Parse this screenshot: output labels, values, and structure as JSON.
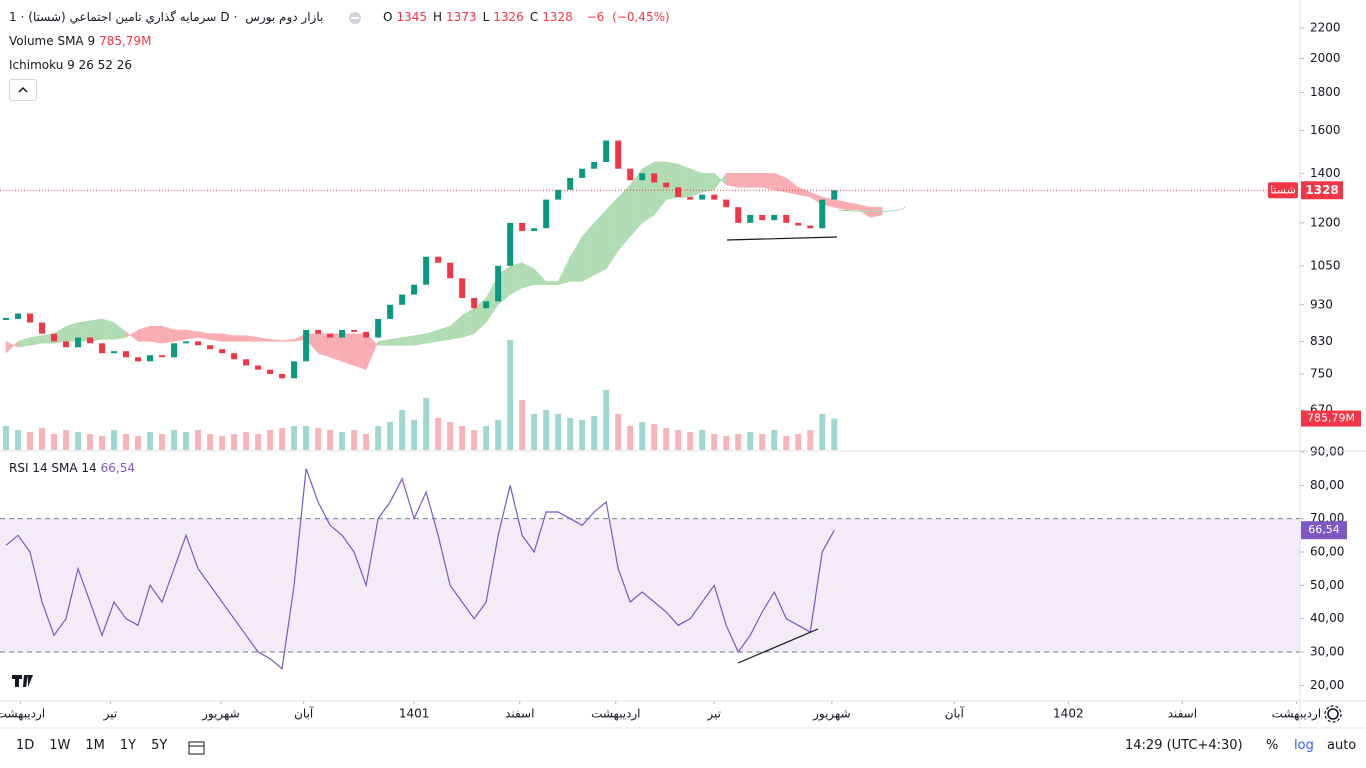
{
  "header": {
    "name": "سرمايه گذاري تامين اجتماعي (شستا)",
    "interval": "1D",
    "exchange": "بازار دوم بورس",
    "ohlc": [
      {
        "prefix": "O",
        "value": 1345
      },
      {
        "prefix": "H",
        "value": 1373
      },
      {
        "prefix": "L",
        "value": 1326
      },
      {
        "prefix": "C",
        "value": 1328
      }
    ],
    "change": {
      "value": -6,
      "label": "−6"
    },
    "change_pct": {
      "value": -0.45,
      "label": "(−0,45%)"
    },
    "volume_legend": "Volume SMA 9",
    "ichimoku_legend": "Ichimoku 9 26 52 26",
    "rsi_legend": "RSI 14 SMA 14"
  },
  "chart_data": {
    "type": "candlestick",
    "close": [
      890,
      905,
      880,
      850,
      830,
      815,
      840,
      825,
      800,
      805,
      790,
      780,
      795,
      790,
      825,
      830,
      820,
      810,
      800,
      785,
      770,
      760,
      750,
      740,
      780,
      860,
      850,
      840,
      860,
      855,
      840,
      890,
      930,
      960,
      990,
      1080,
      1060,
      1010,
      950,
      920,
      940,
      1050,
      1200,
      1170,
      1180,
      1290,
      1330,
      1380,
      1420,
      1450,
      1550,
      1420,
      1370,
      1400,
      1360,
      1340,
      1300,
      1290,
      1310,
      1290,
      1260,
      1200,
      1230,
      1210,
      1230,
      1200,
      1190,
      1180,
      1290,
      1328
    ],
    "volume": [
      600,
      500,
      450,
      550,
      400,
      500,
      450,
      400,
      350,
      500,
      400,
      350,
      450,
      400,
      500,
      450,
      500,
      400,
      350,
      400,
      450,
      400,
      500,
      550,
      600,
      600,
      550,
      500,
      450,
      500,
      400,
      600,
      700,
      1000,
      750,
      1300,
      800,
      700,
      600,
      500,
      600,
      750,
      2750,
      1250,
      900,
      1000,
      900,
      800,
      750,
      850,
      1500,
      900,
      600,
      700,
      650,
      550,
      500,
      450,
      500,
      400,
      350,
      400,
      450,
      400,
      500,
      350,
      400,
      500,
      900,
      785.79
    ],
    "volume_lim": [
      0,
      11250
    ],
    "volume_label": {
      "value": 785.79,
      "label": "785,79M"
    },
    "ichimoku": {
      "span_a": [
        800,
        830,
        840,
        845,
        850,
        870,
        880,
        885,
        890,
        880,
        855,
        830,
        830,
        825,
        830,
        835,
        840,
        835,
        830,
        830,
        830,
        830,
        830,
        830,
        830,
        835,
        800,
        790,
        780,
        770,
        760,
        830,
        835,
        840,
        845,
        850,
        860,
        870,
        900,
        920,
        950,
        1020,
        1050,
        1060,
        1040,
        1000,
        1000,
        1080,
        1150,
        1200,
        1250,
        1300,
        1350,
        1420,
        1450,
        1450,
        1440,
        1420,
        1400,
        1400,
        1350,
        1340,
        1340,
        1340,
        1330,
        1320,
        1310,
        1300,
        1270,
        1260,
        1250,
        1250,
        1220,
        1230
      ],
      "span_b": [
        830,
        815,
        820,
        825,
        825,
        830,
        830,
        830,
        835,
        835,
        840,
        860,
        870,
        870,
        860,
        860,
        855,
        850,
        850,
        845,
        845,
        840,
        835,
        832,
        835,
        850,
        850,
        850,
        850,
        850,
        850,
        820,
        820,
        820,
        820,
        825,
        830,
        835,
        840,
        850,
        880,
        930,
        960,
        980,
        990,
        990,
        990,
        1000,
        1000,
        1020,
        1040,
        1100,
        1150,
        1200,
        1230,
        1290,
        1300,
        1300,
        1320,
        1330,
        1400,
        1400,
        1400,
        1400,
        1400,
        1380,
        1340,
        1320,
        1300,
        1290,
        1280,
        1270,
        1260,
        1260
      ]
    },
    "ylim": [
      592,
      2400
    ],
    "log": true,
    "yticks": [
      670,
      750,
      830,
      930,
      1050,
      1200,
      1400,
      1600,
      1800,
      2000,
      2200
    ],
    "xlim": [
      -0.5,
      107.8
    ],
    "xticks": [
      {
        "value": 1.2,
        "label": "اردیبهشت"
      },
      {
        "value": 8.7,
        "label": "تیر"
      },
      {
        "value": 17.9,
        "label": "شهریور"
      },
      {
        "value": 24.8,
        "label": "آبان"
      },
      {
        "value": 34,
        "label": "1401"
      },
      {
        "value": 42.8,
        "label": "اسفند"
      },
      {
        "value": 50.8,
        "label": "اردیبهشت"
      },
      {
        "value": 59,
        "label": "تیر"
      },
      {
        "value": 68.8,
        "label": "شهریور"
      },
      {
        "value": 79,
        "label": "آبان"
      },
      {
        "value": 88.5,
        "label": "1402"
      },
      {
        "value": 98,
        "label": "اسفند"
      },
      {
        "value": 107.5,
        "label": "اردیبهشت"
      }
    ],
    "last_price": {
      "value": 1328,
      "tag": "شستا"
    },
    "colors": {
      "up": "#089981",
      "down": "#f23645",
      "cloud_up": "#a5d6a7",
      "cloud_down": "#f7a1a5",
      "volume_up": "#9fd8cf",
      "volume_down": "#f7b5b8",
      "rsi": "#7e57c2",
      "rsi_band": "#ede7f6"
    },
    "rsi": {
      "values": [
        62,
        65,
        60,
        45,
        35,
        40,
        55,
        45,
        35,
        45,
        40,
        38,
        50,
        45,
        55,
        65,
        55,
        50,
        45,
        40,
        35,
        30,
        28,
        25,
        50,
        85,
        75,
        68,
        65,
        60,
        50,
        70,
        75,
        82,
        70,
        78,
        65,
        50,
        45,
        40,
        45,
        65,
        80,
        65,
        60,
        72,
        72,
        70,
        68,
        72,
        75,
        55,
        45,
        48,
        45,
        42,
        38,
        40,
        45,
        50,
        38,
        30,
        35,
        42,
        48,
        40,
        38,
        36,
        60,
        66.54
      ],
      "value_label": "66,54",
      "ylim": [
        15.6,
        90
      ],
      "band": [
        30,
        70
      ],
      "yticks": [
        {
          "value": 20,
          "label": "20,00"
        },
        {
          "value": 30,
          "label": "30,00"
        },
        {
          "value": 40,
          "label": "40,00"
        },
        {
          "value": 50,
          "label": "50,00"
        },
        {
          "value": 60,
          "label": "60,00"
        },
        {
          "value": 70,
          "label": "70,00"
        },
        {
          "value": 80,
          "label": "80,00"
        },
        {
          "value": 90,
          "label": "90,00"
        }
      ]
    }
  },
  "toolbar": {
    "ranges": [
      "1D",
      "1W",
      "1M",
      "1Y",
      "5Y"
    ],
    "time": "14:29 (UTC+4:30)",
    "percent": "%",
    "log": "log",
    "auto": "auto"
  }
}
